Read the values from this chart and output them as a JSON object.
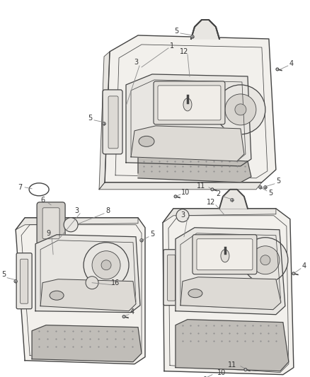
{
  "bg_color": "#ffffff",
  "line_color": "#444444",
  "label_color": "#333333",
  "panel_fill": "#f2f0ec",
  "panel_fill2": "#e8e6e2",
  "grille_fill": "#c0bdb8",
  "figsize": [
    4.38,
    5.33
  ],
  "dpi": 100,
  "label_fs": 7.0
}
